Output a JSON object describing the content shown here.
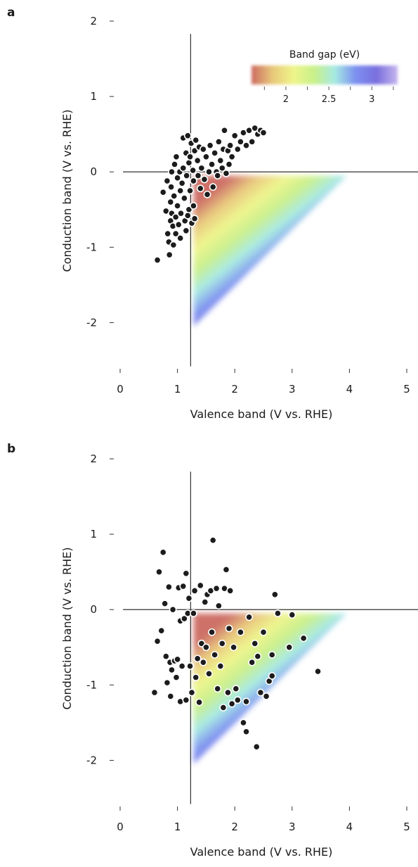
{
  "panels": {
    "a": {
      "letter": "a"
    },
    "b": {
      "letter": "b"
    }
  },
  "colorbar": {
    "title": "Band gap (eV)",
    "ticks": [
      2,
      2.5,
      3
    ],
    "tick_labels": [
      "2",
      "2.5",
      "3"
    ],
    "range": [
      1.6,
      3.3
    ],
    "colors": [
      "#cc6b62",
      "#e8c77a",
      "#eef58a",
      "#c9f08a",
      "#a6e9e3",
      "#7b8ff0",
      "#7a6fdd",
      "#c6b6ee"
    ]
  },
  "chart_data": [
    {
      "type": "scatter",
      "panel": "a",
      "title": "",
      "xlabel": "Valence band (V vs. RHE)",
      "ylabel": "Conduction band (V vs. RHE)",
      "xlim": [
        0,
        5
      ],
      "ylim": [
        -2.5,
        2
      ],
      "xticks": [
        0,
        1,
        2,
        3,
        4,
        5
      ],
      "yticks": [
        -2,
        -1,
        0,
        1,
        2
      ],
      "reference_lines": {
        "x": 1.23,
        "y": 0
      },
      "shaded_region": {
        "description": "water-splitting window",
        "valence_min": 1.28,
        "conduction_max": -0.05,
        "band_gap_colored": true
      },
      "points": [
        [
          0.65,
          -1.17
        ],
        [
          0.75,
          -0.27
        ],
        [
          0.8,
          -0.52
        ],
        [
          0.82,
          -0.12
        ],
        [
          0.83,
          -0.82
        ],
        [
          0.85,
          -0.93
        ],
        [
          0.86,
          -1.1
        ],
        [
          0.88,
          -0.65
        ],
        [
          0.88,
          -0.4
        ],
        [
          0.89,
          -0.2
        ],
        [
          0.9,
          -0.55
        ],
        [
          0.9,
          0.0
        ],
        [
          0.92,
          -0.72
        ],
        [
          0.93,
          -0.97
        ],
        [
          0.94,
          -0.32
        ],
        [
          0.95,
          0.1
        ],
        [
          0.97,
          -0.6
        ],
        [
          0.97,
          -0.82
        ],
        [
          0.98,
          0.2
        ],
        [
          1.0,
          -0.45
        ],
        [
          1.0,
          -0.08
        ],
        [
          1.02,
          -0.7
        ],
        [
          1.04,
          0.0
        ],
        [
          1.05,
          -0.25
        ],
        [
          1.06,
          -0.55
        ],
        [
          1.08,
          -0.15
        ],
        [
          1.1,
          0.45
        ],
        [
          1.1,
          0.05
        ],
        [
          1.12,
          -0.35
        ],
        [
          1.13,
          -0.65
        ],
        [
          1.15,
          0.25
        ],
        [
          1.16,
          -0.05
        ],
        [
          1.18,
          0.48
        ],
        [
          1.2,
          -0.5
        ],
        [
          1.2,
          0.12
        ],
        [
          1.22,
          -0.25
        ],
        [
          1.24,
          0.38
        ],
        [
          1.25,
          -0.68
        ],
        [
          1.27,
          0.02
        ],
        [
          1.28,
          -0.12
        ],
        [
          1.3,
          0.28
        ],
        [
          1.3,
          -0.62
        ],
        [
          1.32,
          0.42
        ],
        [
          1.35,
          0.15
        ],
        [
          1.36,
          -0.05
        ],
        [
          1.38,
          0.33
        ],
        [
          1.4,
          -0.22
        ],
        [
          1.42,
          0.05
        ],
        [
          1.45,
          0.3
        ],
        [
          1.47,
          -0.1
        ],
        [
          1.5,
          0.2
        ],
        [
          1.52,
          -0.3
        ],
        [
          1.55,
          0.0
        ],
        [
          1.57,
          0.35
        ],
        [
          1.6,
          0.1
        ],
        [
          1.62,
          -0.2
        ],
        [
          1.65,
          0.25
        ],
        [
          1.68,
          0.0
        ],
        [
          1.7,
          -0.05
        ],
        [
          1.72,
          0.4
        ],
        [
          1.75,
          0.15
        ],
        [
          1.78,
          0.05
        ],
        [
          1.8,
          0.3
        ],
        [
          1.82,
          0.55
        ],
        [
          1.85,
          -0.02
        ],
        [
          1.88,
          0.28
        ],
        [
          1.9,
          0.1
        ],
        [
          1.92,
          0.35
        ],
        [
          1.95,
          0.2
        ],
        [
          2.0,
          0.48
        ],
        [
          2.05,
          0.3
        ],
        [
          2.1,
          0.4
        ],
        [
          2.15,
          0.52
        ],
        [
          2.2,
          0.35
        ],
        [
          2.25,
          0.55
        ],
        [
          2.3,
          0.4
        ],
        [
          2.35,
          0.58
        ],
        [
          2.4,
          0.5
        ],
        [
          2.45,
          0.55
        ],
        [
          2.5,
          0.52
        ],
        [
          1.15,
          -0.78
        ],
        [
          1.05,
          -0.88
        ],
        [
          1.18,
          -0.58
        ],
        [
          1.28,
          -0.45
        ],
        [
          1.22,
          0.2
        ]
      ]
    },
    {
      "type": "scatter",
      "panel": "b",
      "title": "",
      "xlabel": "Valence band (V vs. RHE)",
      "ylabel": "Conduction band (V vs. RHE)",
      "xlim": [
        0,
        5
      ],
      "ylim": [
        -2.5,
        2
      ],
      "xticks": [
        0,
        1,
        2,
        3,
        4,
        5
      ],
      "yticks": [
        -2,
        -1,
        0,
        1,
        2
      ],
      "reference_lines": {
        "x": 1.23,
        "y": 0
      },
      "shaded_region": {
        "description": "water-splitting window",
        "valence_min": 1.28,
        "conduction_max": -0.05,
        "band_gap_colored": true
      },
      "points": [
        [
          0.6,
          -1.1
        ],
        [
          0.65,
          -0.42
        ],
        [
          0.68,
          0.5
        ],
        [
          0.72,
          -0.28
        ],
        [
          0.75,
          0.76
        ],
        [
          0.78,
          0.08
        ],
        [
          0.8,
          -0.62
        ],
        [
          0.82,
          -0.97
        ],
        [
          0.85,
          0.3
        ],
        [
          0.87,
          -0.7
        ],
        [
          0.88,
          -1.15
        ],
        [
          0.9,
          -0.8
        ],
        [
          0.92,
          0.0
        ],
        [
          0.95,
          -0.68
        ],
        [
          0.98,
          -0.9
        ],
        [
          1.0,
          -0.66
        ],
        [
          1.02,
          0.29
        ],
        [
          1.05,
          -0.15
        ],
        [
          1.05,
          -1.22
        ],
        [
          1.08,
          -0.75
        ],
        [
          1.1,
          0.31
        ],
        [
          1.12,
          -0.12
        ],
        [
          1.15,
          0.48
        ],
        [
          1.15,
          -1.2
        ],
        [
          1.18,
          -0.05
        ],
        [
          1.2,
          0.15
        ],
        [
          1.22,
          -0.75
        ],
        [
          1.25,
          -1.1
        ],
        [
          1.28,
          -0.05
        ],
        [
          1.3,
          0.25
        ],
        [
          1.32,
          -0.9
        ],
        [
          1.35,
          -0.65
        ],
        [
          1.38,
          -1.23
        ],
        [
          1.4,
          0.32
        ],
        [
          1.42,
          -0.45
        ],
        [
          1.45,
          -0.7
        ],
        [
          1.48,
          0.1
        ],
        [
          1.5,
          -0.5
        ],
        [
          1.52,
          0.2
        ],
        [
          1.55,
          -0.85
        ],
        [
          1.58,
          0.25
        ],
        [
          1.6,
          -0.3
        ],
        [
          1.62,
          0.92
        ],
        [
          1.65,
          -0.6
        ],
        [
          1.68,
          0.28
        ],
        [
          1.7,
          -1.05
        ],
        [
          1.72,
          0.05
        ],
        [
          1.75,
          -0.75
        ],
        [
          1.78,
          -0.45
        ],
        [
          1.8,
          -1.3
        ],
        [
          1.82,
          0.28
        ],
        [
          1.85,
          0.53
        ],
        [
          1.88,
          -1.1
        ],
        [
          1.9,
          -0.25
        ],
        [
          1.92,
          0.25
        ],
        [
          1.95,
          -1.25
        ],
        [
          1.98,
          -0.5
        ],
        [
          2.02,
          -1.05
        ],
        [
          2.05,
          -1.2
        ],
        [
          2.1,
          -0.3
        ],
        [
          2.15,
          -1.5
        ],
        [
          2.2,
          -1.62
        ],
        [
          2.2,
          -1.22
        ],
        [
          2.25,
          -0.1
        ],
        [
          2.3,
          -0.7
        ],
        [
          2.35,
          -0.45
        ],
        [
          2.38,
          -1.82
        ],
        [
          2.4,
          -0.62
        ],
        [
          2.45,
          -1.1
        ],
        [
          2.5,
          -0.3
        ],
        [
          2.55,
          -1.15
        ],
        [
          2.6,
          -0.95
        ],
        [
          2.65,
          -0.6
        ],
        [
          2.7,
          0.2
        ],
        [
          2.75,
          -0.05
        ],
        [
          2.95,
          -0.5
        ],
        [
          3.0,
          -0.07
        ],
        [
          3.2,
          -0.38
        ],
        [
          3.45,
          -0.82
        ],
        [
          2.65,
          -0.88
        ]
      ]
    }
  ]
}
